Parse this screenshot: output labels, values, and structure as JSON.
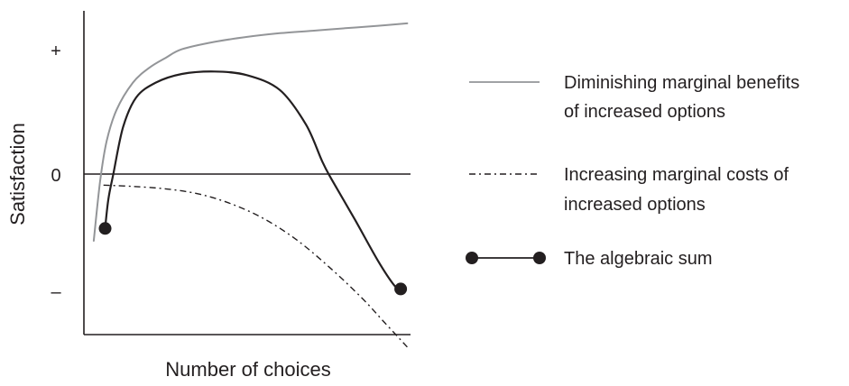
{
  "chart_data": {
    "type": "line",
    "title": "",
    "xlabel": "Number of choices",
    "ylabel": "Satisfaction",
    "y_ticks": [
      {
        "label": "+",
        "value": 1
      },
      {
        "label": "0",
        "value": 0
      },
      {
        "label": "–",
        "value": -1
      }
    ],
    "xlim": [
      0,
      10
    ],
    "ylim": [
      -1.5,
      1.5
    ],
    "grid": false,
    "legend_position": "right",
    "colors": {
      "benefits": "#939598",
      "costs": "#231f20",
      "sum": "#231f20",
      "axis": "#231f20"
    },
    "series": [
      {
        "key": "benefits",
        "name": "Diminishing marginal benefits of increased options",
        "legend_lines": [
          "Diminishing marginal benefits",
          "of increased options"
        ],
        "style": "solid",
        "points": [
          [
            0.3,
            -0.54
          ],
          [
            0.5,
            -0.05
          ],
          [
            0.7,
            0.27
          ],
          [
            1.0,
            0.52
          ],
          [
            1.5,
            0.74
          ],
          [
            2.0,
            0.86
          ],
          [
            2.5,
            0.94
          ],
          [
            3.0,
            1.01
          ],
          [
            4.0,
            1.07
          ],
          [
            5.0,
            1.11
          ],
          [
            6.0,
            1.14
          ],
          [
            7.0,
            1.16
          ],
          [
            8.0,
            1.18
          ],
          [
            9.0,
            1.2
          ],
          [
            9.9,
            1.22
          ]
        ]
      },
      {
        "key": "costs",
        "name": "Increasing marginal costs of increased options",
        "legend_lines": [
          "Increasing marginal costs of",
          "increased options"
        ],
        "style": "dashdot",
        "points": [
          [
            0.6,
            -0.09
          ],
          [
            1.5,
            -0.1
          ],
          [
            2.5,
            -0.12
          ],
          [
            3.5,
            -0.16
          ],
          [
            4.5,
            -0.24
          ],
          [
            5.5,
            -0.36
          ],
          [
            6.5,
            -0.53
          ],
          [
            7.5,
            -0.75
          ],
          [
            8.5,
            -1.0
          ],
          [
            9.2,
            -1.2
          ],
          [
            9.9,
            -1.4
          ]
        ]
      },
      {
        "key": "sum",
        "name": "The algebraic sum",
        "legend_lines": [
          "The algebraic sum"
        ],
        "style": "solid-endpoints",
        "points": [
          [
            0.65,
            -0.44
          ],
          [
            0.75,
            -0.2
          ],
          [
            0.9,
            0.0
          ],
          [
            1.2,
            0.38
          ],
          [
            1.6,
            0.62
          ],
          [
            2.2,
            0.74
          ],
          [
            3.0,
            0.81
          ],
          [
            4.0,
            0.83
          ],
          [
            5.0,
            0.8
          ],
          [
            6.0,
            0.68
          ],
          [
            6.8,
            0.4
          ],
          [
            7.3,
            0.1
          ],
          [
            7.6,
            -0.05
          ],
          [
            8.3,
            -0.37
          ],
          [
            9.0,
            -0.7
          ],
          [
            9.5,
            -0.9
          ],
          [
            9.7,
            -0.93
          ]
        ]
      }
    ]
  }
}
